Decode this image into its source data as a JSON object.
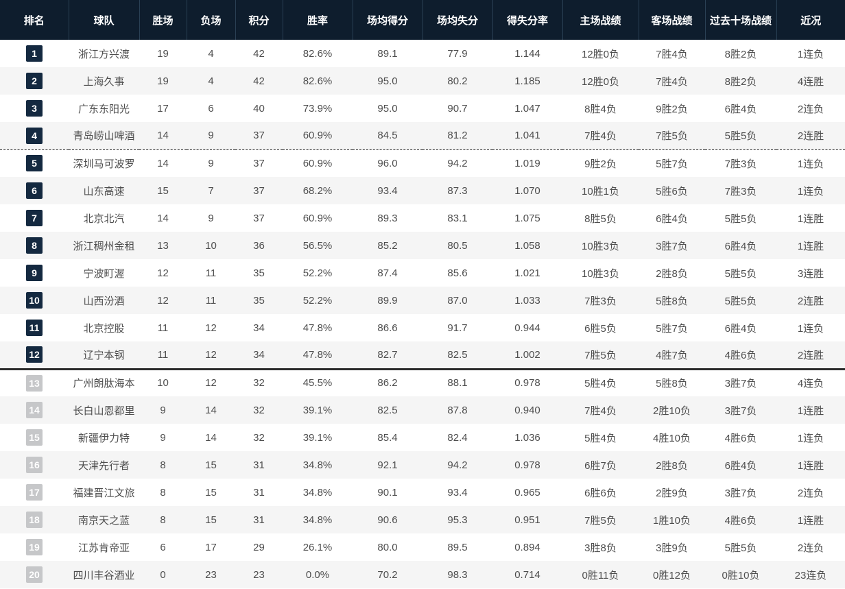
{
  "colors": {
    "header_bg": "#0e1d2d",
    "header_divider": "#2a4054",
    "header_text": "#ffffff",
    "body_text": "#4e4e4e",
    "row_alt": "#f5f5f5",
    "badge_dark": "#142940",
    "badge_gray": "#c6c7c9",
    "sep_dashed": "#1d1d1d",
    "sep_solid": "#2b2b2b"
  },
  "table": {
    "columns": [
      {
        "key": "rank",
        "label": "排名"
      },
      {
        "key": "team",
        "label": "球队"
      },
      {
        "key": "wins",
        "label": "胜场"
      },
      {
        "key": "losses",
        "label": "负场"
      },
      {
        "key": "points",
        "label": "积分"
      },
      {
        "key": "win_rate",
        "label": "胜率"
      },
      {
        "key": "avg_scored",
        "label": "场均得分"
      },
      {
        "key": "avg_allowed",
        "label": "场均失分"
      },
      {
        "key": "score_ratio",
        "label": "得失分率"
      },
      {
        "key": "home_record",
        "label": "主场战绩"
      },
      {
        "key": "away_record",
        "label": "客场战绩"
      },
      {
        "key": "last10_record",
        "label": "过去十场战绩"
      },
      {
        "key": "form",
        "label": "近况"
      }
    ],
    "separators": {
      "dashed_below_rank": 4,
      "solid_below_rank": 12
    },
    "rows": [
      {
        "rank": "1",
        "badge": "dark",
        "team": "浙江方兴渡",
        "wins": "19",
        "losses": "4",
        "points": "42",
        "win_rate": "82.6%",
        "avg_scored": "89.1",
        "avg_allowed": "77.9",
        "score_ratio": "1.144",
        "home_record": "12胜0负",
        "away_record": "7胜4负",
        "last10_record": "8胜2负",
        "form": "1连负"
      },
      {
        "rank": "2",
        "badge": "dark",
        "team": "上海久事",
        "wins": "19",
        "losses": "4",
        "points": "42",
        "win_rate": "82.6%",
        "avg_scored": "95.0",
        "avg_allowed": "80.2",
        "score_ratio": "1.185",
        "home_record": "12胜0负",
        "away_record": "7胜4负",
        "last10_record": "8胜2负",
        "form": "4连胜"
      },
      {
        "rank": "3",
        "badge": "dark",
        "team": "广东东阳光",
        "wins": "17",
        "losses": "6",
        "points": "40",
        "win_rate": "73.9%",
        "avg_scored": "95.0",
        "avg_allowed": "90.7",
        "score_ratio": "1.047",
        "home_record": "8胜4负",
        "away_record": "9胜2负",
        "last10_record": "6胜4负",
        "form": "2连负"
      },
      {
        "rank": "4",
        "badge": "dark",
        "team": "青岛崂山啤酒",
        "wins": "14",
        "losses": "9",
        "points": "37",
        "win_rate": "60.9%",
        "avg_scored": "84.5",
        "avg_allowed": "81.2",
        "score_ratio": "1.041",
        "home_record": "7胜4负",
        "away_record": "7胜5负",
        "last10_record": "5胜5负",
        "form": "2连胜"
      },
      {
        "rank": "5",
        "badge": "dark",
        "team": "深圳马可波罗",
        "wins": "14",
        "losses": "9",
        "points": "37",
        "win_rate": "60.9%",
        "avg_scored": "96.0",
        "avg_allowed": "94.2",
        "score_ratio": "1.019",
        "home_record": "9胜2负",
        "away_record": "5胜7负",
        "last10_record": "7胜3负",
        "form": "1连负"
      },
      {
        "rank": "6",
        "badge": "dark",
        "team": "山东高速",
        "wins": "15",
        "losses": "7",
        "points": "37",
        "win_rate": "68.2%",
        "avg_scored": "93.4",
        "avg_allowed": "87.3",
        "score_ratio": "1.070",
        "home_record": "10胜1负",
        "away_record": "5胜6负",
        "last10_record": "7胜3负",
        "form": "1连负"
      },
      {
        "rank": "7",
        "badge": "dark",
        "team": "北京北汽",
        "wins": "14",
        "losses": "9",
        "points": "37",
        "win_rate": "60.9%",
        "avg_scored": "89.3",
        "avg_allowed": "83.1",
        "score_ratio": "1.075",
        "home_record": "8胜5负",
        "away_record": "6胜4负",
        "last10_record": "5胜5负",
        "form": "1连胜"
      },
      {
        "rank": "8",
        "badge": "dark",
        "team": "浙江稠州金租",
        "wins": "13",
        "losses": "10",
        "points": "36",
        "win_rate": "56.5%",
        "avg_scored": "85.2",
        "avg_allowed": "80.5",
        "score_ratio": "1.058",
        "home_record": "10胜3负",
        "away_record": "3胜7负",
        "last10_record": "6胜4负",
        "form": "1连胜"
      },
      {
        "rank": "9",
        "badge": "dark",
        "team": "宁波町渥",
        "wins": "12",
        "losses": "11",
        "points": "35",
        "win_rate": "52.2%",
        "avg_scored": "87.4",
        "avg_allowed": "85.6",
        "score_ratio": "1.021",
        "home_record": "10胜3负",
        "away_record": "2胜8负",
        "last10_record": "5胜5负",
        "form": "3连胜"
      },
      {
        "rank": "10",
        "badge": "dark",
        "team": "山西汾酒",
        "wins": "12",
        "losses": "11",
        "points": "35",
        "win_rate": "52.2%",
        "avg_scored": "89.9",
        "avg_allowed": "87.0",
        "score_ratio": "1.033",
        "home_record": "7胜3负",
        "away_record": "5胜8负",
        "last10_record": "5胜5负",
        "form": "2连胜"
      },
      {
        "rank": "11",
        "badge": "dark",
        "team": "北京控股",
        "wins": "11",
        "losses": "12",
        "points": "34",
        "win_rate": "47.8%",
        "avg_scored": "86.6",
        "avg_allowed": "91.7",
        "score_ratio": "0.944",
        "home_record": "6胜5负",
        "away_record": "5胜7负",
        "last10_record": "6胜4负",
        "form": "1连负"
      },
      {
        "rank": "12",
        "badge": "dark",
        "team": "辽宁本钢",
        "wins": "11",
        "losses": "12",
        "points": "34",
        "win_rate": "47.8%",
        "avg_scored": "82.7",
        "avg_allowed": "82.5",
        "score_ratio": "1.002",
        "home_record": "7胜5负",
        "away_record": "4胜7负",
        "last10_record": "4胜6负",
        "form": "2连胜"
      },
      {
        "rank": "13",
        "badge": "gray",
        "team": "广州朗肽海本",
        "wins": "10",
        "losses": "12",
        "points": "32",
        "win_rate": "45.5%",
        "avg_scored": "86.2",
        "avg_allowed": "88.1",
        "score_ratio": "0.978",
        "home_record": "5胜4负",
        "away_record": "5胜8负",
        "last10_record": "3胜7负",
        "form": "4连负"
      },
      {
        "rank": "14",
        "badge": "gray",
        "team": "长白山恩都里",
        "wins": "9",
        "losses": "14",
        "points": "32",
        "win_rate": "39.1%",
        "avg_scored": "82.5",
        "avg_allowed": "87.8",
        "score_ratio": "0.940",
        "home_record": "7胜4负",
        "away_record": "2胜10负",
        "last10_record": "3胜7负",
        "form": "1连胜"
      },
      {
        "rank": "15",
        "badge": "gray",
        "team": "新疆伊力特",
        "wins": "9",
        "losses": "14",
        "points": "32",
        "win_rate": "39.1%",
        "avg_scored": "85.4",
        "avg_allowed": "82.4",
        "score_ratio": "1.036",
        "home_record": "5胜4负",
        "away_record": "4胜10负",
        "last10_record": "4胜6负",
        "form": "1连负"
      },
      {
        "rank": "16",
        "badge": "gray",
        "team": "天津先行者",
        "wins": "8",
        "losses": "15",
        "points": "31",
        "win_rate": "34.8%",
        "avg_scored": "92.1",
        "avg_allowed": "94.2",
        "score_ratio": "0.978",
        "home_record": "6胜7负",
        "away_record": "2胜8负",
        "last10_record": "6胜4负",
        "form": "1连胜"
      },
      {
        "rank": "17",
        "badge": "gray",
        "team": "福建晋江文旅",
        "wins": "8",
        "losses": "15",
        "points": "31",
        "win_rate": "34.8%",
        "avg_scored": "90.1",
        "avg_allowed": "93.4",
        "score_ratio": "0.965",
        "home_record": "6胜6负",
        "away_record": "2胜9负",
        "last10_record": "3胜7负",
        "form": "2连负"
      },
      {
        "rank": "18",
        "badge": "gray",
        "team": "南京天之蓝",
        "wins": "8",
        "losses": "15",
        "points": "31",
        "win_rate": "34.8%",
        "avg_scored": "90.6",
        "avg_allowed": "95.3",
        "score_ratio": "0.951",
        "home_record": "7胜5负",
        "away_record": "1胜10负",
        "last10_record": "4胜6负",
        "form": "1连胜"
      },
      {
        "rank": "19",
        "badge": "gray",
        "team": "江苏肯帝亚",
        "wins": "6",
        "losses": "17",
        "points": "29",
        "win_rate": "26.1%",
        "avg_scored": "80.0",
        "avg_allowed": "89.5",
        "score_ratio": "0.894",
        "home_record": "3胜8负",
        "away_record": "3胜9负",
        "last10_record": "5胜5负",
        "form": "2连负"
      },
      {
        "rank": "20",
        "badge": "gray",
        "team": "四川丰谷酒业",
        "wins": "0",
        "losses": "23",
        "points": "23",
        "win_rate": "0.0%",
        "avg_scored": "70.2",
        "avg_allowed": "98.3",
        "score_ratio": "0.714",
        "home_record": "0胜11负",
        "away_record": "0胜12负",
        "last10_record": "0胜10负",
        "form": "23连负"
      }
    ]
  }
}
